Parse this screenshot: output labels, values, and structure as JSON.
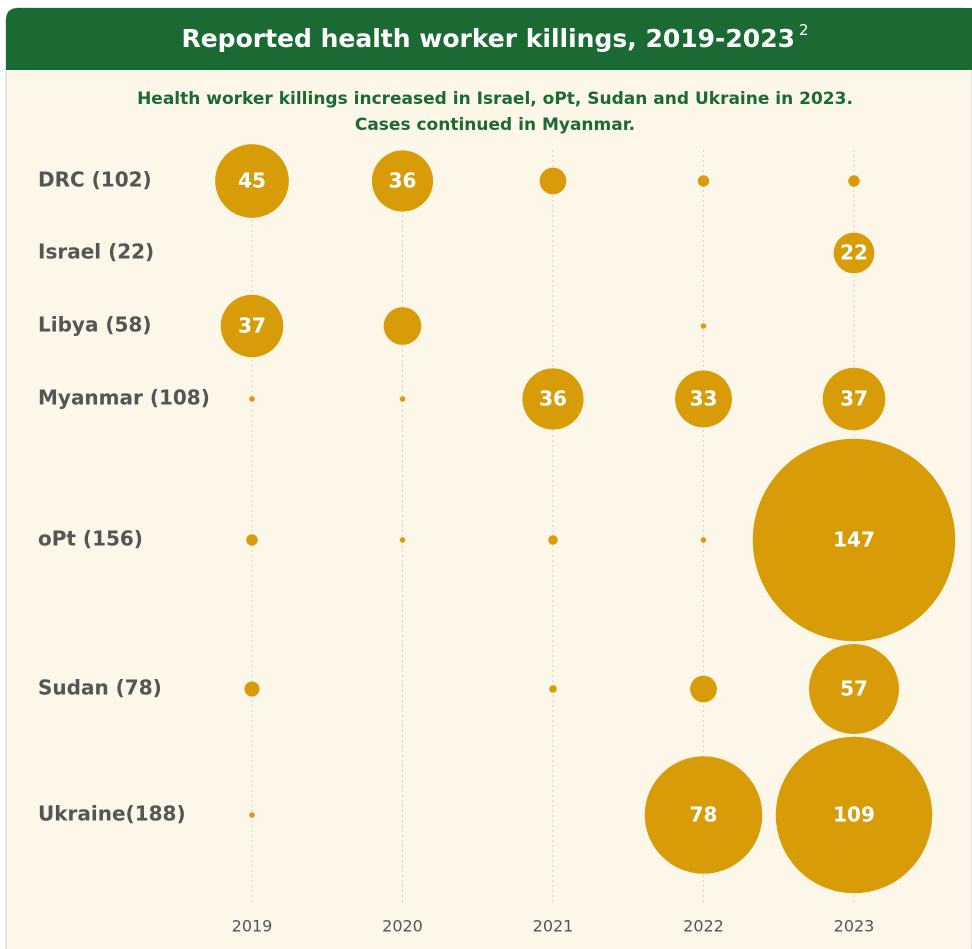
{
  "chart_data": {
    "type": "bubble",
    "title": "Reported health worker killings, 2019-2023",
    "title_note": "2",
    "subtitle": [
      "Health worker killings increased in Israel, oPt, Sudan and Ukraine in 2023.",
      "Cases continued in Myanmar."
    ],
    "categories": [
      "2019",
      "2020",
      "2021",
      "2022",
      "2023"
    ],
    "color": "#d99c09",
    "series": [
      {
        "name": "DRC (102)",
        "values": [
          45,
          36,
          13,
          4,
          4
        ]
      },
      {
        "name": "Israel (22)",
        "values": [
          null,
          null,
          null,
          null,
          22
        ]
      },
      {
        "name": "Libya (58)",
        "values": [
          37,
          20,
          null,
          1,
          null
        ]
      },
      {
        "name": "Myanmar (108)",
        "values": [
          1,
          1,
          36,
          33,
          37
        ]
      },
      {
        "name": "oPt (156)",
        "values": [
          4,
          1,
          3,
          1,
          147
        ]
      },
      {
        "name": "Sudan (78)",
        "values": [
          6,
          null,
          2,
          13,
          57
        ]
      },
      {
        "name": "Ukraine(188)",
        "values": [
          1,
          null,
          null,
          78,
          109
        ]
      }
    ]
  }
}
